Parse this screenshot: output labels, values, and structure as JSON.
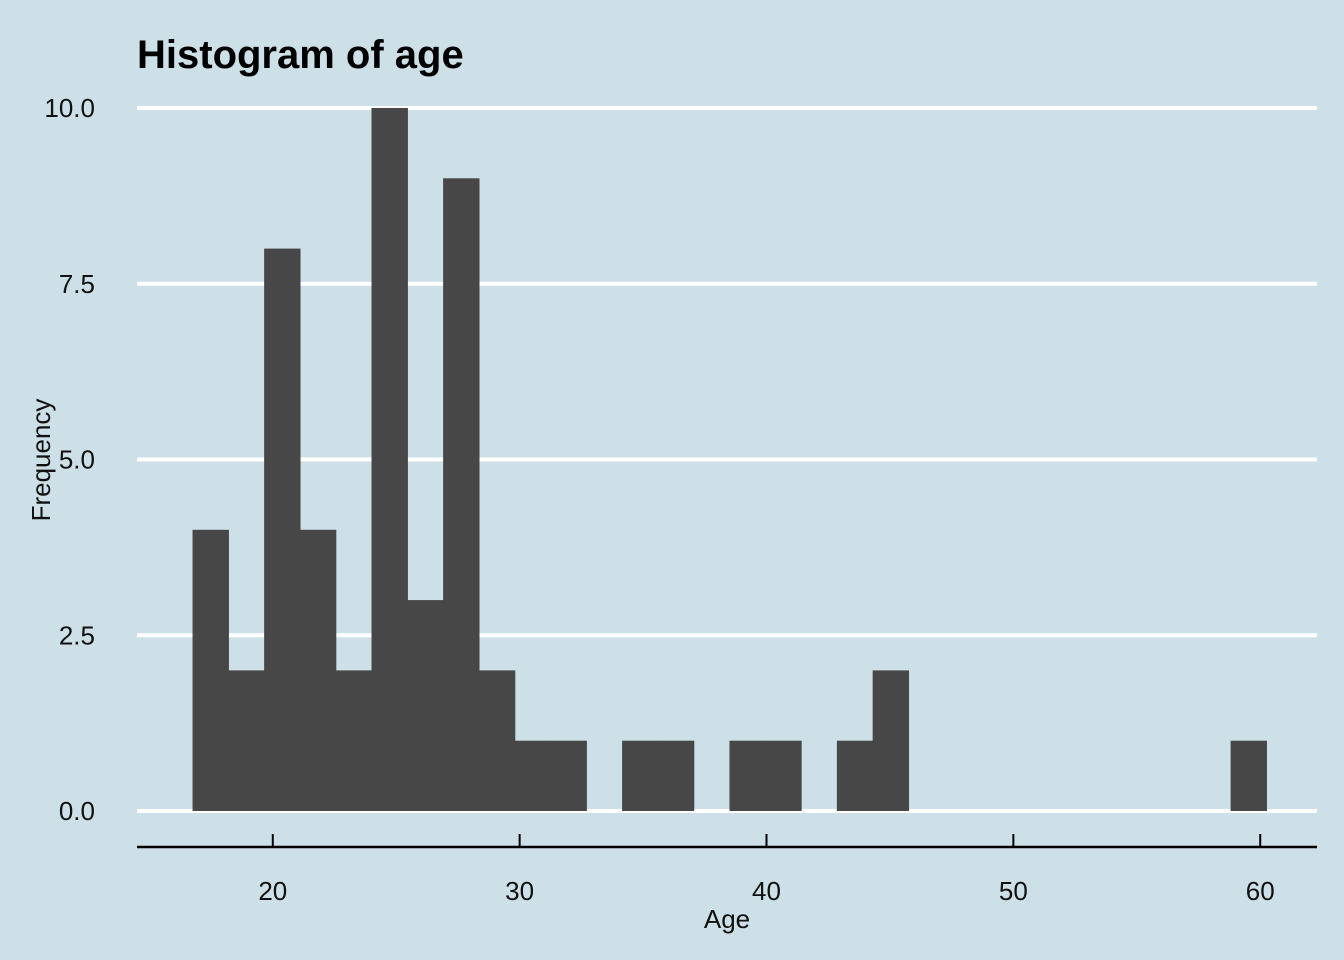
{
  "chart_data": {
    "type": "bar",
    "title": "Histogram of age",
    "xlabel": "Age",
    "ylabel": "Frequency",
    "xlim": [
      14.5,
      62.3
    ],
    "ylim": [
      0,
      10
    ],
    "x_ticks": [
      20,
      30,
      40,
      50,
      60
    ],
    "y_ticks": [
      0,
      2.5,
      5,
      7.5,
      10
    ],
    "x_tick_labels": [
      "20",
      "30",
      "40",
      "50",
      "60"
    ],
    "y_tick_labels": [
      "0.0",
      "2.5",
      "5.0",
      "7.5",
      "10.0"
    ],
    "grid": "horizontal",
    "bin_width": 1.45,
    "bins": [
      {
        "start": 16.75,
        "end": 18.2,
        "count": 4
      },
      {
        "start": 18.2,
        "end": 19.65,
        "count": 2
      },
      {
        "start": 19.65,
        "end": 21.1,
        "count": 8
      },
      {
        "start": 21.1,
        "end": 22.55,
        "count": 4
      },
      {
        "start": 22.55,
        "end": 24.0,
        "count": 2
      },
      {
        "start": 24.0,
        "end": 25.45,
        "count": 10
      },
      {
        "start": 25.45,
        "end": 26.9,
        "count": 3
      },
      {
        "start": 26.9,
        "end": 28.35,
        "count": 9
      },
      {
        "start": 28.35,
        "end": 29.8,
        "count": 2
      },
      {
        "start": 29.8,
        "end": 31.25,
        "count": 1
      },
      {
        "start": 31.25,
        "end": 32.7,
        "count": 1
      },
      {
        "start": 32.7,
        "end": 34.15,
        "count": 0
      },
      {
        "start": 34.15,
        "end": 35.6,
        "count": 1
      },
      {
        "start": 35.6,
        "end": 37.05,
        "count": 1
      },
      {
        "start": 37.05,
        "end": 38.5,
        "count": 0
      },
      {
        "start": 38.5,
        "end": 39.95,
        "count": 1
      },
      {
        "start": 39.95,
        "end": 41.4,
        "count": 1
      },
      {
        "start": 41.4,
        "end": 42.85,
        "count": 0
      },
      {
        "start": 42.85,
        "end": 44.3,
        "count": 1
      },
      {
        "start": 44.3,
        "end": 45.75,
        "count": 2
      },
      {
        "start": 58.8,
        "end": 60.25,
        "count": 1
      }
    ]
  },
  "colors": {
    "background": "#cde0e7",
    "bar_fill": "#474747",
    "gridline": "#ffffff",
    "axis": "#000000"
  }
}
